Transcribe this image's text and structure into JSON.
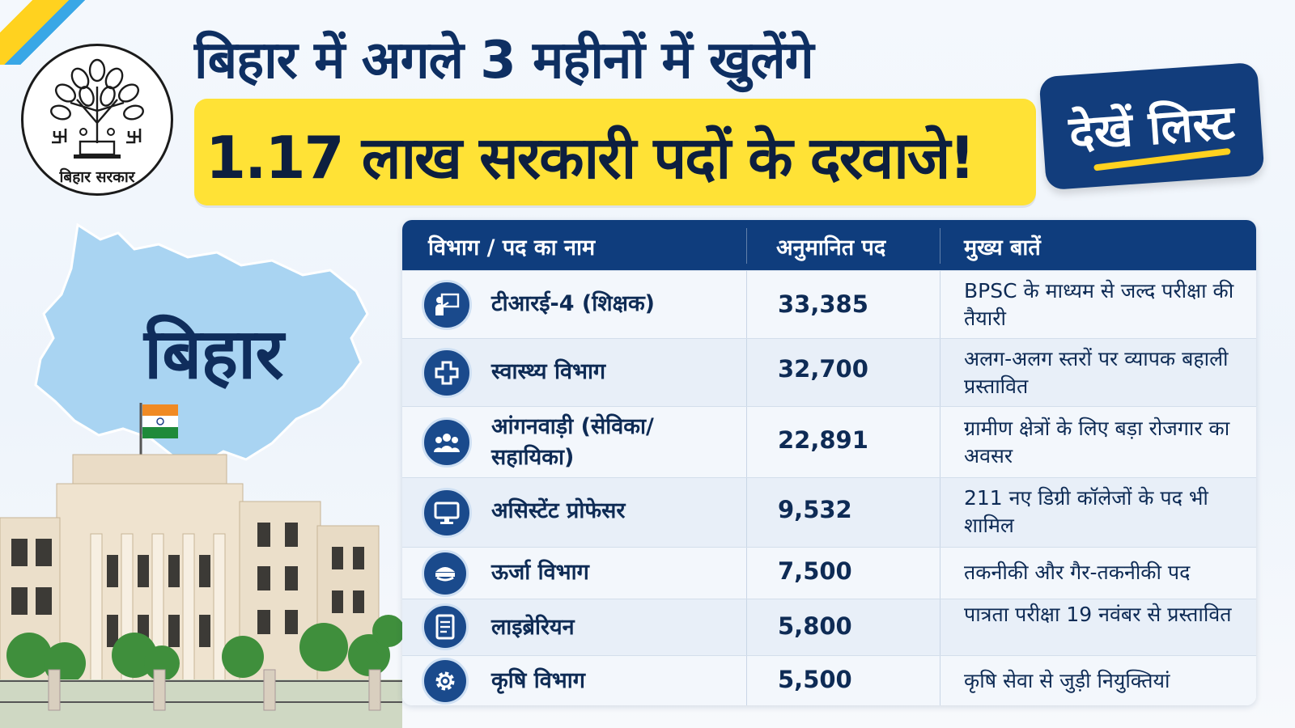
{
  "header": {
    "line1": "बिहार में अगले 3 महीनों में खुलेंगे",
    "line2": "1.17 लाख सरकारी पदों के दरवाजे!",
    "badge": "देखें लिस्ट"
  },
  "logo": {
    "caption": "बिहार सरकार",
    "emblem_text": "[बिहार]"
  },
  "map": {
    "label": "बिहार"
  },
  "colors": {
    "navy": "#0f3d7d",
    "yellow": "#ffe236",
    "map_blue": "#a9d4f2"
  },
  "table": {
    "headers": [
      "विभाग / पद का नाम",
      "अनुमानित पद",
      "मुख्य बातें"
    ],
    "rows": [
      {
        "icon": "teacher-icon",
        "name": "टीआरई-4 (शिक्षक)",
        "count": "33,385",
        "note": "BPSC के माध्यम से जल्द परीक्षा की तैयारी"
      },
      {
        "icon": "medical-cross-icon",
        "name": "स्वास्थ्य विभाग",
        "count": "32,700",
        "note": "अलग-अलग स्तरों पर व्यापक बहाली प्रस्तावित"
      },
      {
        "icon": "people-group-icon",
        "name": "आंगनवाड़ी (सेविका/ सहायिका)",
        "count": "22,891",
        "note": "ग्रामीण क्षेत्रों के लिए बड़ा रोजगार का अवसर"
      },
      {
        "icon": "monitor-icon",
        "name": "असिस्टेंट प्रोफेसर",
        "count": "9,532",
        "note": "211 नए डिग्री कॉलेजों के पद भी शामिल"
      },
      {
        "icon": "officer-cap-icon",
        "name": "ऊर्जा विभाग",
        "count": "7,500",
        "note": "तकनीकी और गैर-तकनीकी पद"
      },
      {
        "icon": "document-icon",
        "name": "लाइब्रेरियन",
        "count": "5,800",
        "note": "पात्रता परीक्षा 19 नवंबर से प्रस्तावित"
      },
      {
        "icon": "gear-icon",
        "name": "कृषि विभाग",
        "count": "5,500",
        "note": "कृषि सेवा से जुड़ी नियुक्तियां"
      }
    ]
  }
}
